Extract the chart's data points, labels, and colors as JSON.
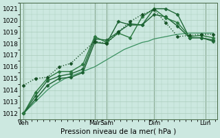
{
  "xlabel": "Pression niveau de la mer( hPa )",
  "bg_color": "#cce8e0",
  "grid_color": "#aaccbb",
  "ylim": [
    1011.5,
    1021.5
  ],
  "yticks": [
    1012,
    1013,
    1014,
    1015,
    1016,
    1017,
    1018,
    1019,
    1020,
    1021
  ],
  "xlim": [
    0,
    100
  ],
  "day_labels": [
    "Ven",
    "Mar",
    "Sam",
    "Dim",
    "Lun"
  ],
  "day_positions": [
    2,
    38,
    44,
    68,
    94
  ],
  "vline_positions": [
    2,
    38,
    44,
    68,
    94
  ],
  "line_smooth": {
    "x": [
      2,
      5,
      8,
      11,
      14,
      17,
      20,
      23,
      26,
      29,
      32,
      35,
      38,
      41,
      44,
      47,
      50,
      53,
      56,
      59,
      62,
      65,
      68,
      71,
      74,
      77,
      80,
      83,
      86,
      89,
      92,
      95,
      98
    ],
    "y": [
      1012.0,
      1012.5,
      1013.0,
      1013.5,
      1014.0,
      1014.4,
      1014.7,
      1015.0,
      1015.2,
      1015.4,
      1015.6,
      1015.8,
      1016.0,
      1016.3,
      1016.6,
      1016.9,
      1017.2,
      1017.5,
      1017.7,
      1017.9,
      1018.1,
      1018.2,
      1018.4,
      1018.5,
      1018.6,
      1018.7,
      1018.8,
      1018.85,
      1018.9,
      1018.9,
      1018.9,
      1018.9,
      1018.9
    ],
    "color": "#3a9060",
    "lw": 0.9,
    "ls": "-"
  },
  "line_a": {
    "x": [
      2,
      8,
      14,
      20,
      26,
      32,
      38,
      44,
      50,
      56,
      62,
      68,
      74,
      80,
      86,
      92,
      98
    ],
    "y": [
      1012.0,
      1013.2,
      1014.4,
      1015.0,
      1015.1,
      1015.5,
      1018.1,
      1018.0,
      1019.9,
      1019.6,
      1019.6,
      1020.5,
      1020.3,
      1019.5,
      1018.5,
      1018.5,
      1018.3
    ],
    "color": "#1a6030",
    "lw": 1.0,
    "ls": "-",
    "marker": "D",
    "ms": 2.5
  },
  "line_b": {
    "x": [
      2,
      8,
      14,
      20,
      26,
      32,
      38,
      44,
      50,
      56,
      62,
      68,
      74,
      80,
      86,
      92,
      98
    ],
    "y": [
      1012.0,
      1013.5,
      1014.8,
      1015.2,
      1015.4,
      1015.8,
      1018.4,
      1018.3,
      1019.0,
      1019.7,
      1019.6,
      1021.0,
      1021.0,
      1020.5,
      1018.5,
      1018.5,
      1018.2
    ],
    "color": "#206838",
    "lw": 1.0,
    "ls": "-",
    "marker": "D",
    "ms": 2.5
  },
  "line_c": {
    "x": [
      2,
      8,
      14,
      20,
      26,
      32,
      38,
      44,
      50,
      56,
      62,
      68,
      74,
      80,
      86,
      92,
      98
    ],
    "y": [
      1012.0,
      1013.8,
      1015.0,
      1015.6,
      1015.6,
      1016.2,
      1018.6,
      1018.1,
      1018.9,
      1018.5,
      1020.3,
      1021.0,
      1020.2,
      1019.8,
      1018.6,
      1018.7,
      1018.5
    ],
    "color": "#2a7840",
    "lw": 1.0,
    "ls": "-",
    "marker": "D",
    "ms": 2.5
  },
  "line_d": {
    "x": [
      2,
      8,
      14,
      20,
      26,
      38,
      44,
      50,
      56,
      62,
      68,
      74,
      80,
      86,
      92,
      98
    ],
    "y": [
      1014.4,
      1015.0,
      1015.1,
      1016.0,
      1016.3,
      1018.2,
      1018.0,
      1019.0,
      1019.9,
      1020.5,
      1020.9,
      1019.8,
      1018.6,
      1018.7,
      1018.8,
      1018.8
    ],
    "color": "#155025",
    "lw": 1.0,
    "ls": ":",
    "marker": "D",
    "ms": 2.5
  }
}
